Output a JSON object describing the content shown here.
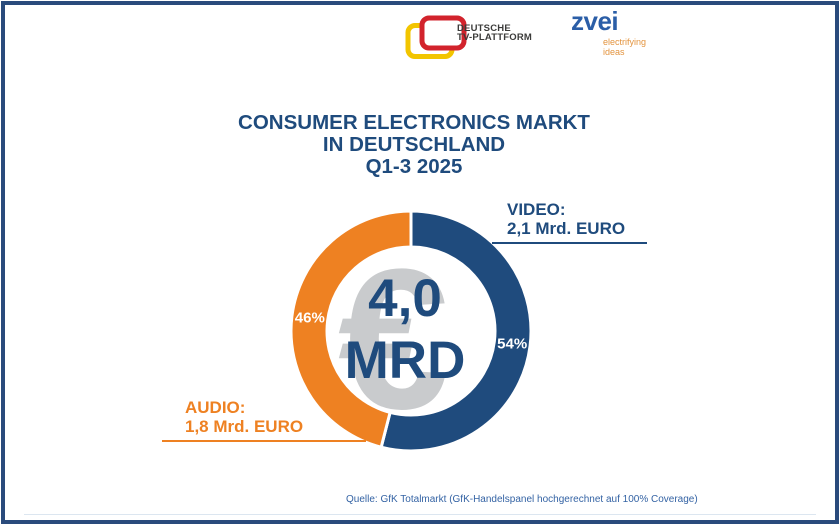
{
  "page": {
    "background": "#ffffff",
    "border_color": "#2A4B7C"
  },
  "header": {
    "tv_plattform": {
      "icon": "tv-screen-logo",
      "line1": "DEUTSCHE",
      "line2": "TV-PLATTFORM",
      "red": "#D2232C",
      "yellow": "#F2C500",
      "text_color": "#3B3B3A"
    },
    "zvei": {
      "name": "zvei",
      "tagline_line1": "electrifying",
      "tagline_line2": "ideas",
      "blue": "#2B5EA7",
      "orange": "#E3943F"
    }
  },
  "title": {
    "line1": "CONSUMER ELECTRONICS MARKT",
    "line2": "IN DEUTSCHLAND",
    "line3": "Q1-3 2025",
    "color": "#1F4B7D"
  },
  "chart_data": {
    "type": "pie",
    "donut": true,
    "title": "Consumer Electronics Markt in Deutschland Q1-3 2025",
    "start_at_top": true,
    "direction": "clockwise",
    "total_label": {
      "value": "4,0",
      "unit": "MRD",
      "currency_symbol": "€",
      "total_mrd_euro": 4.0
    },
    "series": [
      {
        "name": "VIDEO",
        "value_mrd_euro": 2.1,
        "percent": 54,
        "percent_label": "54%",
        "color": "#1F4B7D"
      },
      {
        "name": "AUDIO",
        "value_mrd_euro": 1.8,
        "percent": 46,
        "percent_label": "46%",
        "color": "#EE8122"
      }
    ]
  },
  "callouts": {
    "video": {
      "title": "VIDEO:",
      "value": "2,1 Mrd. EURO"
    },
    "audio": {
      "title": "AUDIO:",
      "value": "1,8 Mrd. EURO"
    }
  },
  "footer": {
    "source": "Quelle: GfK Totalmarkt (GfK-Handelspanel hochgerechnet auf 100% Coverage)",
    "color": "#3463A4"
  }
}
